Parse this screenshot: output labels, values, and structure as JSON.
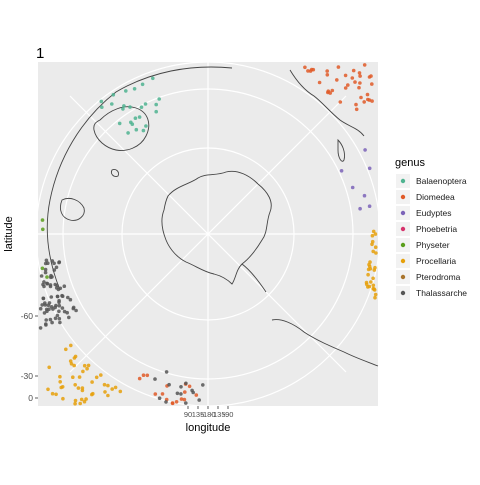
{
  "chart_data": {
    "type": "scatter",
    "title": "1",
    "xlabel": "longitude",
    "ylabel": "latitude",
    "projection": "south-polar",
    "y_ticks": [
      "-60",
      "-30",
      "0"
    ],
    "x_ticks": [
      "90",
      "135",
      "-180",
      "-135",
      "-90"
    ],
    "grid": true,
    "legend_position": "right",
    "legend": {
      "title": "genus",
      "entries": [
        {
          "label": "Balaenoptera",
          "color": "#66c2a5"
        },
        {
          "label": "Diomedea",
          "color": "#fc8d62"
        },
        {
          "label": "Eudyptes",
          "color": "#8da0cb"
        },
        {
          "label": "Phoebetria",
          "color": "#e78ac3"
        },
        {
          "label": "Physeter",
          "color": "#a6d854"
        },
        {
          "label": "Procellaria",
          "color": "#ffd92f"
        },
        {
          "label": "Pterodroma",
          "color": "#e5c494"
        },
        {
          "label": "Thalassarche",
          "color": "#b3b3b3"
        }
      ]
    },
    "observed_colors": {
      "Balaenoptera": "#4fb390",
      "Diomedea": "#e05a28",
      "Eudyptes": "#7b63b8",
      "Phoebetria": "#d6336c",
      "Physeter": "#5a9e1c",
      "Procellaria": "#e6a00a",
      "Pterodroma": "#a8742c",
      "Thalassarche": "#555555"
    },
    "clusters": [
      {
        "genus": "Thalassarche",
        "lon": 110,
        "lat": -48,
        "n": 120
      },
      {
        "genus": "Procellaria",
        "lon": 140,
        "lat": -42,
        "n": 60
      },
      {
        "genus": "Physeter",
        "lon": 95,
        "lat": -45,
        "n": 18
      },
      {
        "genus": "Diomedea",
        "lon": 165,
        "lat": -48,
        "n": 30
      },
      {
        "genus": "Thalassarche",
        "lon": 170,
        "lat": -50,
        "n": 25
      },
      {
        "genus": "Procellaria",
        "lon": -100,
        "lat": -45,
        "n": 140
      },
      {
        "genus": "Physeter",
        "lon": -85,
        "lat": -42,
        "n": 110
      },
      {
        "genus": "Eudyptes",
        "lon": -70,
        "lat": -50,
        "n": 12
      },
      {
        "genus": "Diomedea",
        "lon": -40,
        "lat": -40,
        "n": 60
      },
      {
        "genus": "Procellaria",
        "lon": -20,
        "lat": -38,
        "n": 50
      },
      {
        "genus": "Balaenoptera",
        "lon": 30,
        "lat": -55,
        "n": 25
      },
      {
        "genus": "Physeter",
        "lon": 15,
        "lat": -38,
        "n": 10
      }
    ]
  }
}
